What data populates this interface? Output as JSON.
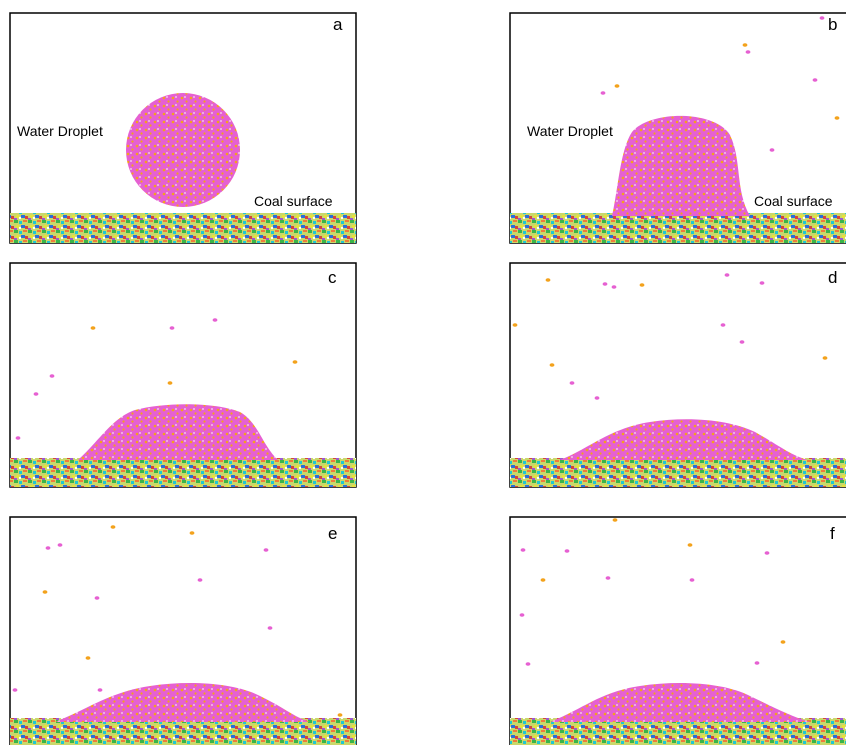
{
  "panels": [
    {
      "label": "a",
      "annotations": [
        "Water Droplet",
        "Coal surface"
      ]
    },
    {
      "label": "b",
      "annotations": [
        "Water Droplet",
        "Coal surface"
      ]
    },
    {
      "label": "c"
    },
    {
      "label": "d"
    },
    {
      "label": "e"
    },
    {
      "label": "f"
    }
  ]
}
